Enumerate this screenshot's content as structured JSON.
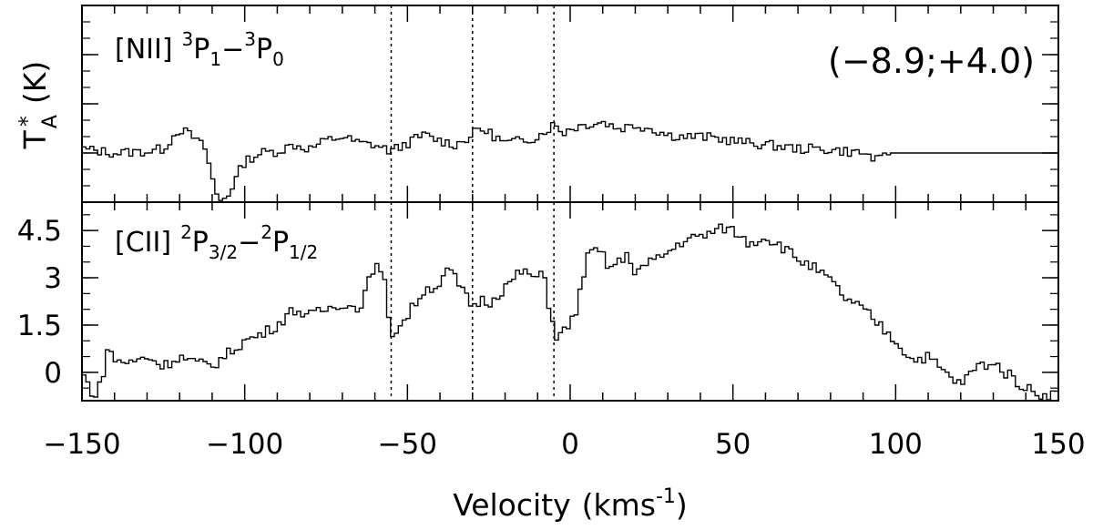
{
  "chart_data": {
    "type": "line",
    "drawstyle": "steps",
    "xlabel": "Velocity",
    "xunit": "kms",
    "xunit_exp": "-1",
    "ylabel": "T",
    "ylabel_sup": "*",
    "ylabel_sub": "A",
    "ylabel_unit": "(K)",
    "xlim": [
      -150,
      150
    ],
    "xticks": [
      "−150",
      "−100",
      "−50",
      "0",
      "50",
      "100",
      "150"
    ],
    "xtick_values": [
      -150,
      -100,
      -50,
      0,
      50,
      100,
      150
    ],
    "vlines": [
      -55,
      -30,
      -5
    ],
    "position_label": "(−8.9;+4.0)",
    "panels": [
      {
        "name": "NII",
        "line_label": "[NII]",
        "upper_sup": "3",
        "upper_main": "P",
        "upper_sub": "1",
        "dash": "−",
        "lower_sup": "3",
        "lower_main": "P",
        "lower_sub": "0",
        "ylim": [
          -0.6,
          1.8
        ],
        "yticks_shown": false,
        "series": [
          [
            -150,
            0.05
          ],
          [
            -140,
            0.0
          ],
          [
            -130,
            0.02
          ],
          [
            -125,
            0.05
          ],
          [
            -120,
            0.3
          ],
          [
            -116,
            0.2
          ],
          [
            -112,
            0.05
          ],
          [
            -110,
            -0.3
          ],
          [
            -108,
            -0.6
          ],
          [
            -105,
            -0.5
          ],
          [
            -100,
            -0.1
          ],
          [
            -95,
            0.0
          ],
          [
            -90,
            0.02
          ],
          [
            -85,
            0.1
          ],
          [
            -80,
            0.05
          ],
          [
            -75,
            0.15
          ],
          [
            -70,
            0.2
          ],
          [
            -65,
            0.12
          ],
          [
            -60,
            0.1
          ],
          [
            -55,
            0.02
          ],
          [
            -50,
            0.12
          ],
          [
            -45,
            0.22
          ],
          [
            -40,
            0.15
          ],
          [
            -35,
            0.1
          ],
          [
            -30,
            0.22
          ],
          [
            -28,
            0.3
          ],
          [
            -25,
            0.25
          ],
          [
            -20,
            0.12
          ],
          [
            -15,
            0.15
          ],
          [
            -10,
            0.2
          ],
          [
            -5,
            0.35
          ],
          [
            -2,
            0.25
          ],
          [
            0,
            0.3
          ],
          [
            5,
            0.35
          ],
          [
            10,
            0.38
          ],
          [
            15,
            0.3
          ],
          [
            20,
            0.34
          ],
          [
            25,
            0.3
          ],
          [
            30,
            0.22
          ],
          [
            35,
            0.2
          ],
          [
            40,
            0.2
          ],
          [
            45,
            0.18
          ],
          [
            50,
            0.15
          ],
          [
            55,
            0.12
          ],
          [
            60,
            0.1
          ],
          [
            65,
            0.08
          ],
          [
            70,
            0.05
          ],
          [
            75,
            0.05
          ],
          [
            80,
            0.04
          ],
          [
            85,
            0.02
          ],
          [
            90,
            0.0
          ],
          [
            95,
            -0.1
          ],
          [
            98,
            0.0
          ],
          [
            100,
            0.0
          ],
          [
            150,
            0.0
          ]
        ]
      },
      {
        "name": "CII",
        "line_label": "[CII]",
        "upper_sup": "2",
        "upper_main": "P",
        "upper_sub": "3/2",
        "dash": "−",
        "lower_sup": "2",
        "lower_main": "P",
        "lower_sub": "1/2",
        "ylim": [
          -0.9,
          5.4
        ],
        "yticks": [
          0,
          1.5,
          3,
          4.5
        ],
        "ytick_labels": [
          "0",
          "1.5",
          "3",
          "4.5"
        ],
        "series": [
          [
            -150,
            0.0
          ],
          [
            -148,
            -0.4
          ],
          [
            -146,
            -0.8
          ],
          [
            -144,
            -0.3
          ],
          [
            -142,
            0.8
          ],
          [
            -140,
            0.4
          ],
          [
            -135,
            0.3
          ],
          [
            -130,
            0.5
          ],
          [
            -125,
            0.2
          ],
          [
            -120,
            0.5
          ],
          [
            -115,
            0.3
          ],
          [
            -110,
            0.2
          ],
          [
            -105,
            0.6
          ],
          [
            -100,
            1.0
          ],
          [
            -95,
            1.2
          ],
          [
            -90,
            1.5
          ],
          [
            -85,
            2.0
          ],
          [
            -80,
            1.8
          ],
          [
            -75,
            2.0
          ],
          [
            -70,
            2.2
          ],
          [
            -65,
            2.0
          ],
          [
            -62,
            2.8
          ],
          [
            -60,
            3.5
          ],
          [
            -57,
            2.8
          ],
          [
            -55,
            1.2
          ],
          [
            -52,
            1.5
          ],
          [
            -50,
            1.8
          ],
          [
            -45,
            2.6
          ],
          [
            -40,
            2.8
          ],
          [
            -37,
            3.3
          ],
          [
            -35,
            2.9
          ],
          [
            -32,
            2.4
          ],
          [
            -30,
            2.1
          ],
          [
            -27,
            2.3
          ],
          [
            -25,
            2.2
          ],
          [
            -20,
            2.7
          ],
          [
            -15,
            3.2
          ],
          [
            -10,
            3.0
          ],
          [
            -8,
            3.1
          ],
          [
            -6,
            1.8
          ],
          [
            -4,
            1.1
          ],
          [
            0,
            1.5
          ],
          [
            2,
            2.0
          ],
          [
            5,
            3.6
          ],
          [
            8,
            3.9
          ],
          [
            10,
            3.7
          ],
          [
            12,
            3.3
          ],
          [
            15,
            3.5
          ],
          [
            18,
            3.7
          ],
          [
            20,
            3.2
          ],
          [
            25,
            3.5
          ],
          [
            30,
            3.8
          ],
          [
            35,
            4.2
          ],
          [
            40,
            4.3
          ],
          [
            45,
            4.5
          ],
          [
            48,
            4.6
          ],
          [
            50,
            4.5
          ],
          [
            55,
            4.1
          ],
          [
            60,
            4.3
          ],
          [
            65,
            4.0
          ],
          [
            70,
            3.6
          ],
          [
            75,
            3.3
          ],
          [
            80,
            2.9
          ],
          [
            85,
            2.3
          ],
          [
            90,
            2.0
          ],
          [
            95,
            1.5
          ],
          [
            100,
            1.0
          ],
          [
            105,
            0.4
          ],
          [
            110,
            0.5
          ],
          [
            115,
            0.0
          ],
          [
            120,
            -0.4
          ],
          [
            125,
            0.2
          ],
          [
            130,
            0.3
          ],
          [
            135,
            -0.1
          ],
          [
            140,
            -0.5
          ],
          [
            145,
            -0.7
          ],
          [
            150,
            -0.7
          ]
        ]
      }
    ]
  }
}
